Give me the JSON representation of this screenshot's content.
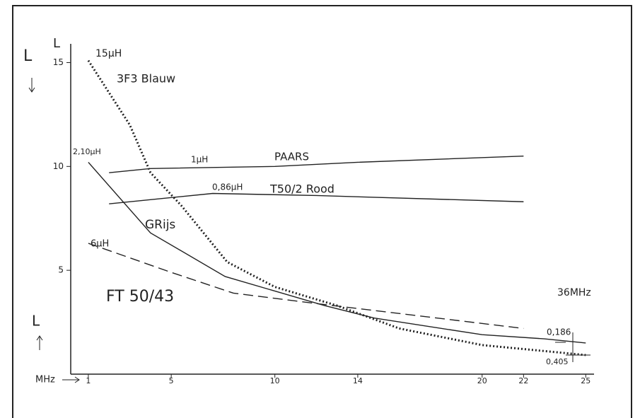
{
  "chart_data": {
    "type": "line",
    "y_label": "L",
    "x_label": "MHz",
    "xlim": [
      0.15,
      25.4
    ],
    "xticks": [
      1,
      5,
      10,
      14,
      20,
      22,
      25
    ],
    "ylim": [
      0,
      15.8
    ],
    "yticks": [
      5,
      10,
      15
    ],
    "series": [
      {
        "name": "3F3 Blauw",
        "color": "#222",
        "style": "crosses",
        "x": [
          1,
          3,
          4,
          5.5,
          7.7,
          10,
          13,
          16,
          20,
          25
        ],
        "values": [
          15.1,
          12.0,
          9.7,
          8.1,
          5.4,
          4.2,
          3.3,
          2.2,
          1.4,
          0.92
        ]
      },
      {
        "name": "PAARS",
        "color": "#222",
        "style": "solid",
        "x": [
          2,
          4,
          10,
          14,
          22
        ],
        "values": [
          9.7,
          9.9,
          10.0,
          10.2,
          10.5
        ]
      },
      {
        "name": "T50/2 Rood",
        "color": "#222",
        "style": "solid",
        "x": [
          2,
          7,
          12,
          22
        ],
        "values": [
          8.2,
          8.7,
          8.6,
          8.3
        ]
      },
      {
        "name": "GRijs",
        "color": "#222",
        "style": "solid",
        "x": [
          1,
          4,
          7.6,
          12.4,
          14.8,
          20,
          23,
          25
        ],
        "values": [
          10.2,
          6.8,
          4.7,
          3.3,
          2.7,
          1.9,
          1.7,
          1.5
        ]
      },
      {
        "name": "FT 50/43",
        "color": "#222",
        "style": "dashed",
        "x": [
          1,
          5,
          8,
          12,
          22
        ],
        "values": [
          6.3,
          4.9,
          3.9,
          3.4,
          2.2
        ]
      }
    ],
    "annotations": [
      "15µH",
      "2,10µH",
      "1µH",
      "0,86µH",
      "6µH",
      "36MHz",
      "0,186",
      "0,405",
      "L",
      "L"
    ]
  }
}
